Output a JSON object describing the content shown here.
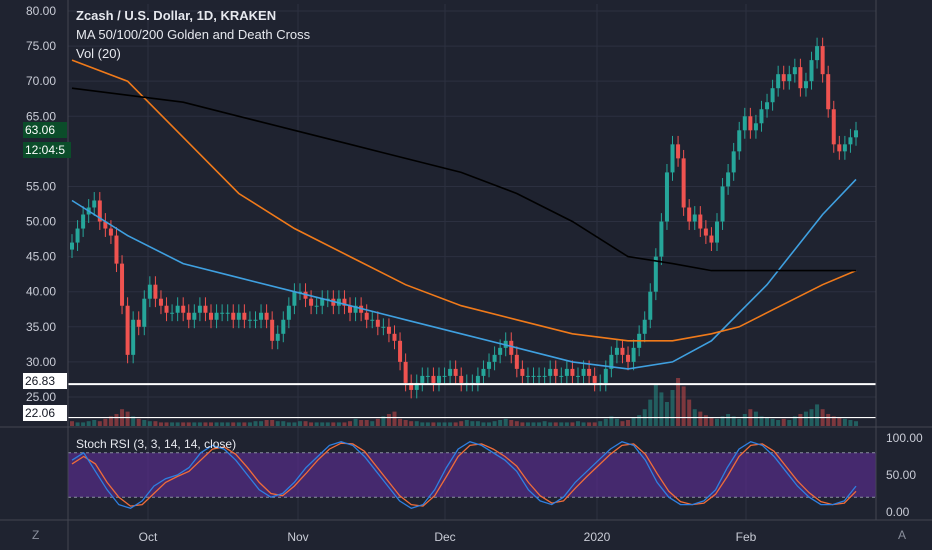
{
  "header": {
    "title": "Zcash / U.S. Dollar, 1D, KRAKEN",
    "indicator": "MA 50/100/200 Golden and Death Cross",
    "volume": "Vol (20)"
  },
  "price_tags": {
    "last_price": "63.06",
    "countdown": "12:04:5",
    "line_upper": "26.83",
    "line_lower": "22.06"
  },
  "rsi_label": "Stoch RSI (3, 3, 14, 14, close)",
  "corner": {
    "left": "Z",
    "right": "A"
  },
  "colors": {
    "background": "#1f2330",
    "grid": "#2c3040",
    "up": "#26a69a",
    "down": "#ef5350",
    "ma50": "#3fa0e0",
    "ma100": "#f07a1a",
    "ma200": "#000000",
    "rsi_band": "#5a2d91",
    "rsi_k": "#2f7fe0",
    "rsi_d": "#ef6c3a",
    "tag_green": "#0b4d2a"
  },
  "chart_data": {
    "type": "line",
    "title": "Zcash / U.S. Dollar, 1D, KRAKEN",
    "y_ticks": [
      "80.00",
      "75.00",
      "70.00",
      "65.00",
      "55.00",
      "50.00",
      "45.00",
      "40.00",
      "35.00",
      "30.00",
      "25.00"
    ],
    "ylim": [
      22,
      81
    ],
    "x_ticks": [
      "Oct",
      "Nov",
      "Dec",
      "2020",
      "Feb"
    ],
    "rsi_ticks": [
      "100.00",
      "50.00",
      "0.00"
    ],
    "horizontal_lines": [
      26.83,
      22.06
    ],
    "candles_close": [
      47,
      49,
      51,
      52,
      53,
      50,
      49,
      48,
      44,
      38,
      31,
      36,
      35,
      39,
      41,
      39,
      38,
      37,
      37,
      38,
      37,
      36,
      37,
      38,
      37,
      36,
      37,
      37,
      37,
      36,
      37,
      36,
      36,
      36,
      37,
      36,
      33,
      34,
      36,
      38,
      40,
      40,
      39,
      38,
      38,
      39,
      39,
      38,
      39,
      38,
      37,
      38,
      37,
      36,
      36,
      35,
      35,
      34,
      33,
      30,
      27,
      26,
      27,
      28,
      28,
      27,
      28,
      28,
      29,
      28,
      27,
      27,
      27,
      28,
      29,
      30,
      31,
      32,
      33,
      31,
      29,
      28,
      28,
      28,
      28,
      28,
      29,
      28,
      28,
      29,
      28,
      28,
      29,
      28,
      27,
      27,
      29,
      31,
      32,
      31,
      30,
      32,
      34,
      36,
      40,
      45,
      50,
      57,
      61,
      59,
      52,
      50,
      51,
      49,
      48,
      47,
      50,
      55,
      57,
      60,
      63,
      65,
      63,
      64,
      66,
      67,
      69,
      71,
      70,
      71,
      72,
      69,
      70,
      73,
      75,
      71,
      66,
      61,
      60,
      61,
      62,
      63
    ],
    "series": [
      {
        "name": "MA 50",
        "x": [
          0,
          10,
          20,
          30,
          40,
          50,
          60,
          70,
          80,
          90,
          100,
          108,
          115,
          120,
          125,
          130,
          135,
          141
        ],
        "values": [
          53,
          48,
          44,
          42,
          40,
          38,
          36,
          34,
          32,
          30,
          29,
          30,
          33,
          37,
          41,
          46,
          51,
          56
        ]
      },
      {
        "name": "MA 100",
        "x": [
          0,
          10,
          20,
          30,
          40,
          50,
          60,
          70,
          80,
          90,
          100,
          108,
          115,
          120,
          125,
          130,
          135,
          141
        ],
        "values": [
          73,
          70,
          62,
          54,
          49,
          45,
          41,
          38,
          36,
          34,
          33,
          33,
          34,
          35,
          37,
          39,
          41,
          43
        ]
      },
      {
        "name": "MA 200",
        "x": [
          0,
          10,
          20,
          30,
          40,
          50,
          60,
          70,
          80,
          90,
          100,
          108,
          115,
          120,
          125,
          130,
          135,
          141
        ],
        "values": [
          69,
          68,
          67,
          65,
          63,
          61,
          59,
          57,
          54,
          50,
          45,
          44,
          43,
          43,
          43,
          43,
          43,
          43
        ]
      }
    ],
    "volume": [
      4,
      3,
      3,
      4,
      5,
      4,
      6,
      8,
      10,
      14,
      12,
      8,
      6,
      5,
      4,
      4,
      3,
      3,
      3,
      3,
      3,
      3,
      3,
      3,
      3,
      3,
      3,
      3,
      3,
      3,
      3,
      3,
      3,
      4,
      4,
      5,
      5,
      4,
      4,
      3,
      3,
      4,
      4,
      3,
      3,
      3,
      3,
      3,
      3,
      3,
      4,
      6,
      5,
      5,
      4,
      6,
      8,
      10,
      12,
      6,
      5,
      4,
      4,
      3,
      3,
      3,
      3,
      3,
      3,
      3,
      4,
      5,
      4,
      4,
      3,
      3,
      4,
      5,
      6,
      5,
      4,
      3,
      3,
      3,
      3,
      4,
      3,
      3,
      3,
      3,
      3,
      4,
      3,
      3,
      3,
      4,
      6,
      8,
      6,
      4,
      5,
      7,
      9,
      14,
      22,
      35,
      28,
      20,
      30,
      40,
      33,
      22,
      14,
      12,
      9,
      7,
      6,
      8,
      10,
      8,
      6,
      10,
      14,
      12,
      8,
      7,
      6,
      5,
      6,
      5,
      8,
      10,
      12,
      14,
      18,
      14,
      10,
      8,
      7,
      6,
      5,
      4
    ],
    "stoch_rsi_k": [
      70,
      80,
      55,
      30,
      10,
      5,
      15,
      35,
      45,
      50,
      60,
      80,
      90,
      85,
      70,
      50,
      30,
      20,
      25,
      40,
      60,
      75,
      90,
      95,
      90,
      75,
      55,
      35,
      15,
      5,
      10,
      30,
      60,
      85,
      95,
      90,
      80,
      70,
      55,
      30,
      15,
      10,
      20,
      40,
      55,
      70,
      85,
      95,
      90,
      70,
      40,
      20,
      10,
      10,
      15,
      30,
      60,
      85,
      95,
      90,
      75,
      55,
      35,
      20,
      10,
      10,
      15,
      35
    ],
    "stoch_rsi_d": [
      65,
      75,
      65,
      40,
      20,
      8,
      10,
      25,
      40,
      48,
      55,
      70,
      85,
      88,
      78,
      60,
      40,
      25,
      22,
      35,
      52,
      70,
      85,
      93,
      92,
      82,
      62,
      42,
      22,
      10,
      8,
      22,
      48,
      75,
      90,
      92,
      85,
      75,
      62,
      40,
      22,
      12,
      15,
      32,
      48,
      63,
      78,
      90,
      92,
      78,
      52,
      28,
      14,
      10,
      12,
      24,
      48,
      75,
      90,
      92,
      82,
      62,
      42,
      26,
      14,
      10,
      12,
      28
    ]
  }
}
